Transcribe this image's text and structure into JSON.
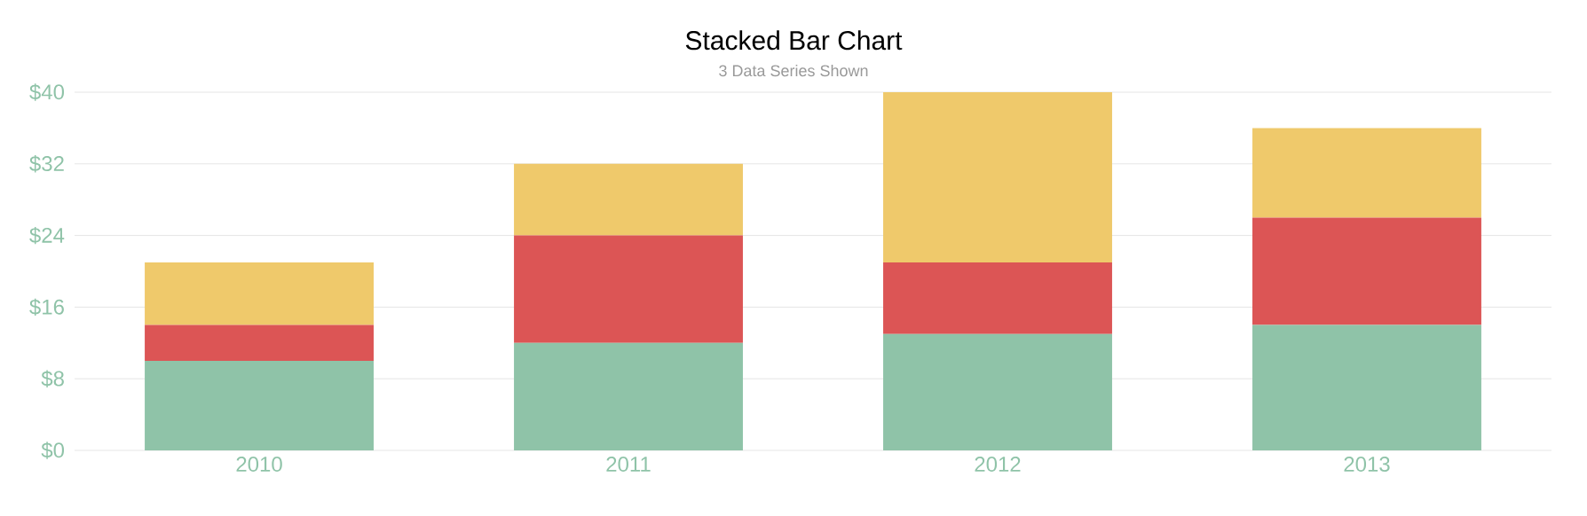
{
  "chart_data": {
    "type": "bar",
    "title": "Stacked Bar Chart",
    "subtitle": "3 Data Series Shown",
    "stacked": true,
    "grid": "y",
    "categories": [
      "2010",
      "2011",
      "2012",
      "2013"
    ],
    "ylim": [
      0,
      40
    ],
    "yticks": [
      {
        "value": 0,
        "label": "$0"
      },
      {
        "value": 8,
        "label": "$8"
      },
      {
        "value": 16,
        "label": "$16"
      },
      {
        "value": 24,
        "label": "$24"
      },
      {
        "value": 32,
        "label": "$32"
      },
      {
        "value": 40,
        "label": "$40"
      }
    ],
    "series": [
      {
        "color": "#8fc3a8",
        "values": [
          10,
          12,
          13,
          14
        ]
      },
      {
        "color": "#dc5555",
        "values": [
          4,
          12,
          8,
          12
        ]
      },
      {
        "color": "#efc96b",
        "values": [
          7,
          8,
          19,
          10
        ]
      }
    ]
  }
}
